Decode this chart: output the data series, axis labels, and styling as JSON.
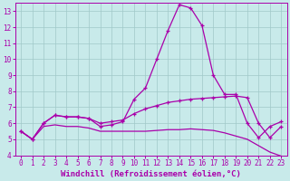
{
  "xlabel": "Windchill (Refroidissement éolien,°C)",
  "background_color": "#c8eaea",
  "grid_color": "#a0c8c8",
  "line_color": "#aa00aa",
  "xlim": [
    -0.5,
    23.5
  ],
  "ylim": [
    4,
    13.5
  ],
  "xticks": [
    0,
    1,
    2,
    3,
    4,
    5,
    6,
    7,
    8,
    9,
    10,
    11,
    12,
    13,
    14,
    15,
    16,
    17,
    18,
    19,
    20,
    21,
    22,
    23
  ],
  "yticks": [
    4,
    5,
    6,
    7,
    8,
    9,
    10,
    11,
    12,
    13
  ],
  "line1_x": [
    0,
    1,
    2,
    3,
    4,
    5,
    6,
    7,
    8,
    9,
    10,
    11,
    12,
    13,
    14,
    15,
    16,
    17,
    18,
    19,
    20,
    21,
    22,
    23
  ],
  "line1_y": [
    5.5,
    5.0,
    6.0,
    6.5,
    6.4,
    6.4,
    6.3,
    5.8,
    5.9,
    6.1,
    7.5,
    8.2,
    10.0,
    11.8,
    13.4,
    13.2,
    12.1,
    9.0,
    7.8,
    7.8,
    6.0,
    5.1,
    5.8,
    6.1
  ],
  "line2_x": [
    0,
    1,
    2,
    3,
    4,
    5,
    6,
    7,
    8,
    9,
    10,
    11,
    12,
    13,
    14,
    15,
    16,
    17,
    18,
    19,
    20,
    21,
    22,
    23
  ],
  "line2_y": [
    5.5,
    5.0,
    6.0,
    6.5,
    6.4,
    6.4,
    6.3,
    6.0,
    6.1,
    6.2,
    6.6,
    6.9,
    7.1,
    7.3,
    7.4,
    7.5,
    7.55,
    7.6,
    7.65,
    7.7,
    7.6,
    6.0,
    5.1,
    5.8
  ],
  "line3_x": [
    0,
    1,
    2,
    3,
    4,
    5,
    6,
    7,
    8,
    9,
    10,
    11,
    12,
    13,
    14,
    15,
    16,
    17,
    18,
    19,
    20,
    21,
    22,
    23
  ],
  "line3_y": [
    5.5,
    5.0,
    5.8,
    5.9,
    5.8,
    5.8,
    5.7,
    5.5,
    5.5,
    5.5,
    5.5,
    5.5,
    5.55,
    5.6,
    5.6,
    5.65,
    5.6,
    5.55,
    5.4,
    5.2,
    5.0,
    4.6,
    4.2,
    3.95
  ],
  "tick_fontsize": 5.5,
  "label_fontsize": 6.5
}
